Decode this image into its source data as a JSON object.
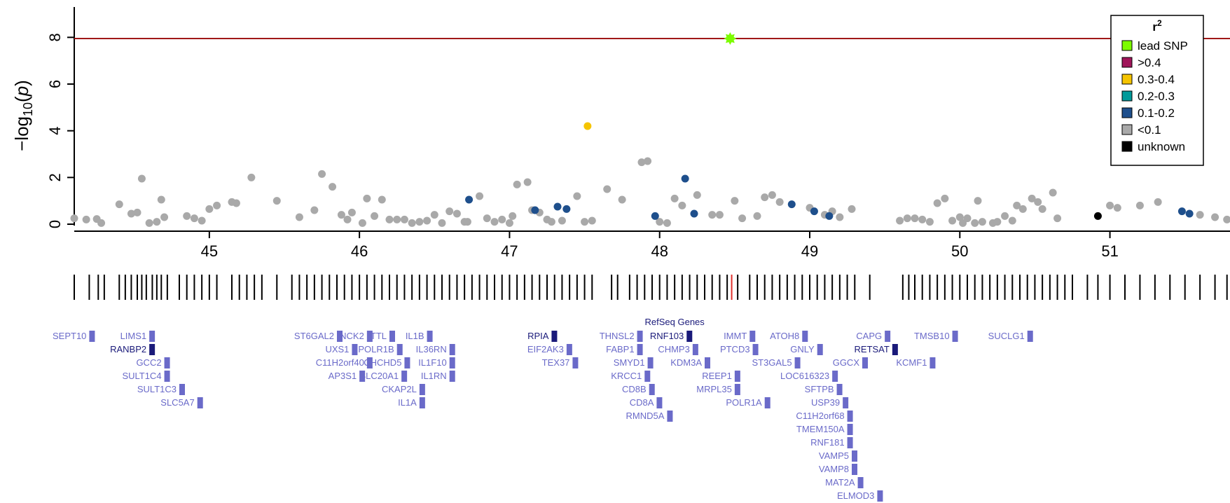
{
  "chart_data": {
    "type": "scatter",
    "ylabel": "−log10(p)",
    "xlim": [
      44.1,
      51.8
    ],
    "ylim": [
      -0.3,
      9.3
    ],
    "xticks": [
      45,
      46,
      47,
      48,
      49,
      50,
      51
    ],
    "yticks": [
      0,
      2,
      4,
      6,
      8
    ],
    "threshold": 7.95,
    "threshold_color": "#a01818",
    "grid": false,
    "legend": {
      "title": "r2",
      "placement": "top-right",
      "items": [
        {
          "label": "lead SNP",
          "color": "#7cfc00"
        },
        {
          "label": ">0.4",
          "color": "#a0155a"
        },
        {
          "label": "0.3-0.4",
          "color": "#f5c400"
        },
        {
          "label": "0.2-0.3",
          "color": "#009a9a"
        },
        {
          "label": "0.1-0.2",
          "color": "#1e4f8c"
        },
        {
          "label": "<0.1",
          "color": "#a9a9a9"
        },
        {
          "label": "unknown",
          "color": "#000000"
        }
      ]
    },
    "series": [
      {
        "color": "#a9a9a9",
        "points": [
          [
            44.1,
            0.25
          ],
          [
            44.18,
            0.2
          ],
          [
            44.25,
            0.22
          ],
          [
            44.28,
            0.05
          ],
          [
            44.4,
            0.85
          ],
          [
            44.48,
            0.45
          ],
          [
            44.52,
            0.5
          ],
          [
            44.55,
            1.95
          ],
          [
            44.6,
            0.05
          ],
          [
            44.65,
            0.1
          ],
          [
            44.68,
            1.05
          ],
          [
            44.7,
            0.3
          ],
          [
            44.85,
            0.35
          ],
          [
            44.9,
            0.25
          ],
          [
            44.95,
            0.15
          ],
          [
            45.0,
            0.65
          ],
          [
            45.05,
            0.8
          ],
          [
            45.15,
            0.95
          ],
          [
            45.18,
            0.9
          ],
          [
            45.28,
            2.0
          ],
          [
            45.45,
            1.0
          ],
          [
            45.6,
            0.3
          ],
          [
            45.7,
            0.6
          ],
          [
            45.75,
            2.15
          ],
          [
            45.82,
            1.6
          ],
          [
            45.88,
            0.4
          ],
          [
            45.92,
            0.2
          ],
          [
            45.95,
            0.5
          ],
          [
            46.02,
            0.05
          ],
          [
            46.05,
            1.1
          ],
          [
            46.1,
            0.35
          ],
          [
            46.15,
            1.05
          ],
          [
            46.2,
            0.2
          ],
          [
            46.25,
            0.2
          ],
          [
            46.3,
            0.2
          ],
          [
            46.35,
            0.05
          ],
          [
            46.4,
            0.1
          ],
          [
            46.45,
            0.15
          ],
          [
            46.5,
            0.4
          ],
          [
            46.55,
            0.05
          ],
          [
            46.6,
            0.55
          ],
          [
            46.65,
            0.45
          ],
          [
            46.7,
            0.1
          ],
          [
            46.72,
            0.1
          ],
          [
            46.8,
            1.2
          ],
          [
            46.85,
            0.25
          ],
          [
            46.9,
            0.1
          ],
          [
            46.95,
            0.2
          ],
          [
            47.0,
            0.05
          ],
          [
            47.02,
            0.35
          ],
          [
            47.05,
            1.7
          ],
          [
            47.12,
            1.8
          ],
          [
            47.15,
            0.6
          ],
          [
            47.2,
            0.5
          ],
          [
            47.25,
            0.2
          ],
          [
            47.28,
            0.1
          ],
          [
            47.35,
            0.15
          ],
          [
            47.45,
            1.2
          ],
          [
            47.5,
            0.1
          ],
          [
            47.55,
            0.15
          ],
          [
            47.65,
            1.5
          ],
          [
            47.75,
            1.05
          ],
          [
            47.88,
            2.65
          ],
          [
            47.92,
            2.7
          ],
          [
            48.0,
            0.1
          ],
          [
            48.05,
            0.05
          ],
          [
            48.1,
            1.1
          ],
          [
            48.15,
            0.8
          ],
          [
            48.25,
            1.25
          ],
          [
            48.35,
            0.4
          ],
          [
            48.4,
            0.4
          ],
          [
            48.5,
            1.0
          ],
          [
            48.55,
            0.25
          ],
          [
            48.65,
            0.35
          ],
          [
            48.7,
            1.15
          ],
          [
            48.75,
            1.25
          ],
          [
            48.8,
            0.95
          ],
          [
            49.0,
            0.7
          ],
          [
            49.1,
            0.4
          ],
          [
            49.15,
            0.55
          ],
          [
            49.2,
            0.3
          ],
          [
            49.28,
            0.65
          ],
          [
            49.6,
            0.15
          ],
          [
            49.65,
            0.25
          ],
          [
            49.7,
            0.25
          ],
          [
            49.75,
            0.2
          ],
          [
            49.8,
            0.1
          ],
          [
            49.85,
            0.9
          ],
          [
            49.9,
            1.1
          ],
          [
            49.95,
            0.15
          ],
          [
            50.0,
            0.3
          ],
          [
            50.02,
            0.05
          ],
          [
            50.05,
            0.25
          ],
          [
            50.1,
            0.05
          ],
          [
            50.12,
            1.0
          ],
          [
            50.15,
            0.1
          ],
          [
            50.22,
            0.05
          ],
          [
            50.25,
            0.1
          ],
          [
            50.3,
            0.35
          ],
          [
            50.35,
            0.15
          ],
          [
            50.38,
            0.8
          ],
          [
            50.42,
            0.65
          ],
          [
            50.48,
            1.1
          ],
          [
            50.52,
            0.95
          ],
          [
            50.55,
            0.65
          ],
          [
            50.62,
            1.35
          ],
          [
            50.65,
            0.25
          ],
          [
            51.0,
            0.8
          ],
          [
            51.05,
            0.7
          ],
          [
            51.2,
            0.8
          ],
          [
            51.32,
            0.95
          ],
          [
            51.6,
            0.4
          ],
          [
            51.7,
            0.3
          ],
          [
            51.78,
            0.2
          ]
        ]
      },
      {
        "color": "#1e4f8c",
        "points": [
          [
            46.73,
            1.05
          ],
          [
            47.17,
            0.6
          ],
          [
            47.32,
            0.75
          ],
          [
            47.38,
            0.65
          ],
          [
            47.97,
            0.35
          ],
          [
            48.17,
            1.95
          ],
          [
            48.23,
            0.45
          ],
          [
            48.88,
            0.85
          ],
          [
            49.03,
            0.55
          ],
          [
            49.13,
            0.35
          ],
          [
            51.48,
            0.55
          ],
          [
            51.53,
            0.45
          ]
        ]
      },
      {
        "color": "#f5c400",
        "points": [
          [
            47.52,
            4.2
          ]
        ]
      },
      {
        "color": "#000000",
        "points": [
          [
            50.92,
            0.35
          ]
        ]
      },
      {
        "color": "#7cfc00",
        "points": [
          [
            48.47,
            7.95
          ]
        ]
      }
    ],
    "snp_track": {
      "color": "#000000",
      "highlight_color": "#e0302a",
      "highlight": [
        48.48
      ],
      "positions": [
        44.1,
        44.2,
        44.26,
        44.3,
        44.4,
        44.44,
        44.48,
        44.52,
        44.55,
        44.58,
        44.62,
        44.65,
        44.68,
        44.72,
        44.8,
        44.85,
        44.9,
        44.95,
        45.0,
        45.05,
        45.15,
        45.2,
        45.25,
        45.3,
        45.35,
        45.45,
        45.55,
        45.6,
        45.65,
        45.7,
        45.75,
        45.8,
        45.85,
        45.9,
        45.95,
        46.0,
        46.05,
        46.1,
        46.15,
        46.2,
        46.25,
        46.3,
        46.35,
        46.4,
        46.45,
        46.5,
        46.55,
        46.6,
        46.65,
        46.7,
        46.75,
        46.8,
        46.85,
        46.9,
        46.95,
        47.0,
        47.05,
        47.1,
        47.15,
        47.2,
        47.25,
        47.3,
        47.35,
        47.4,
        47.45,
        47.5,
        47.55,
        47.68,
        47.72,
        47.8,
        47.85,
        47.9,
        47.95,
        48.0,
        48.05,
        48.1,
        48.15,
        48.2,
        48.25,
        48.3,
        48.35,
        48.4,
        48.45,
        48.48,
        48.52,
        48.6,
        48.65,
        48.7,
        48.75,
        48.8,
        48.85,
        48.9,
        48.95,
        49.0,
        49.05,
        49.1,
        49.15,
        49.2,
        49.25,
        49.3,
        49.4,
        49.62,
        49.66,
        49.7,
        49.75,
        49.8,
        49.85,
        49.9,
        49.95,
        50.0,
        50.05,
        50.1,
        50.15,
        50.2,
        50.25,
        50.3,
        50.35,
        50.4,
        50.45,
        50.5,
        50.55,
        50.6,
        50.65,
        50.7,
        50.75,
        50.85,
        50.92,
        51.0,
        51.1,
        51.2,
        51.3,
        51.4,
        51.5,
        51.6,
        51.7,
        51.78
      ]
    }
  },
  "gene_track": {
    "title": "RefSeq Genes",
    "genes": [
      {
        "name": "SEPT10",
        "x": 44.2,
        "row": 0
      },
      {
        "name": "LIMS1",
        "x": 44.6,
        "row": 0
      },
      {
        "name": "RANBP2",
        "x": 44.6,
        "row": 1,
        "dark": true
      },
      {
        "name": "GCC2",
        "x": 44.7,
        "row": 2
      },
      {
        "name": "SULT1C4",
        "x": 44.7,
        "row": 3
      },
      {
        "name": "SULT1C3",
        "x": 44.8,
        "row": 4
      },
      {
        "name": "SLC5A7",
        "x": 44.92,
        "row": 5
      },
      {
        "name": "ST6GAL2",
        "x": 45.85,
        "row": 0
      },
      {
        "name": "NCK2",
        "x": 46.05,
        "row": 0
      },
      {
        "name": "UXS1",
        "x": 45.95,
        "row": 1
      },
      {
        "name": "C11H2orf40",
        "x": 46.05,
        "row": 2
      },
      {
        "name": "AP3S1",
        "x": 46.0,
        "row": 3
      },
      {
        "name": "TTL",
        "x": 46.2,
        "row": 0
      },
      {
        "name": "POLR1B",
        "x": 46.25,
        "row": 1
      },
      {
        "name": "CHCHD5",
        "x": 46.3,
        "row": 2
      },
      {
        "name": "SLC20A1",
        "x": 46.28,
        "row": 3
      },
      {
        "name": "CKAP2L",
        "x": 46.4,
        "row": 4
      },
      {
        "name": "IL1A",
        "x": 46.4,
        "row": 5
      },
      {
        "name": "IL1B",
        "x": 46.45,
        "row": 0
      },
      {
        "name": "IL36RN",
        "x": 46.6,
        "row": 1
      },
      {
        "name": "IL1F10",
        "x": 46.6,
        "row": 2
      },
      {
        "name": "IL1RN",
        "x": 46.6,
        "row": 3
      },
      {
        "name": "RPIA",
        "x": 47.28,
        "row": 0,
        "dark": true
      },
      {
        "name": "EIF2AK3",
        "x": 47.38,
        "row": 1
      },
      {
        "name": "TEX37",
        "x": 47.42,
        "row": 2
      },
      {
        "name": "THNSL2",
        "x": 47.85,
        "row": 0
      },
      {
        "name": "FABP1",
        "x": 47.85,
        "row": 1
      },
      {
        "name": "SMYD1",
        "x": 47.92,
        "row": 2
      },
      {
        "name": "KRCC1",
        "x": 47.9,
        "row": 3
      },
      {
        "name": "CD8B",
        "x": 47.93,
        "row": 4
      },
      {
        "name": "CD8A",
        "x": 47.98,
        "row": 5
      },
      {
        "name": "RMND5A",
        "x": 48.05,
        "row": 6
      },
      {
        "name": "RNF103",
        "x": 48.18,
        "row": 0,
        "dark": true
      },
      {
        "name": "CHMP3",
        "x": 48.22,
        "row": 1
      },
      {
        "name": "KDM3A",
        "x": 48.3,
        "row": 2
      },
      {
        "name": "REEP1",
        "x": 48.5,
        "row": 3
      },
      {
        "name": "MRPL35",
        "x": 48.5,
        "row": 4
      },
      {
        "name": "POLR1A",
        "x": 48.7,
        "row": 5
      },
      {
        "name": "IMMT",
        "x": 48.6,
        "row": 0
      },
      {
        "name": "PTCD3",
        "x": 48.62,
        "row": 1
      },
      {
        "name": "ST3GAL5",
        "x": 48.9,
        "row": 2
      },
      {
        "name": "LOC616323",
        "x": 49.15,
        "row": 3
      },
      {
        "name": "ATOH8",
        "x": 48.95,
        "row": 0
      },
      {
        "name": "GNLY",
        "x": 49.05,
        "row": 1
      },
      {
        "name": "SFTPB",
        "x": 49.18,
        "row": 4
      },
      {
        "name": "USP39",
        "x": 49.22,
        "row": 5
      },
      {
        "name": "C11H2orf68",
        "x": 49.25,
        "row": 6
      },
      {
        "name": "TMEM150A",
        "x": 49.25,
        "row": 7
      },
      {
        "name": "RNF181",
        "x": 49.25,
        "row": 8
      },
      {
        "name": "VAMP5",
        "x": 49.28,
        "row": 9
      },
      {
        "name": "VAMP8",
        "x": 49.28,
        "row": 10
      },
      {
        "name": "MAT2A",
        "x": 49.32,
        "row": 11
      },
      {
        "name": "ELMOD3",
        "x": 49.45,
        "row": 12
      },
      {
        "name": "CAPG",
        "x": 49.5,
        "row": 0
      },
      {
        "name": "RETSAT",
        "x": 49.55,
        "row": 1,
        "dark": true
      },
      {
        "name": "GGCX",
        "x": 49.35,
        "row": 2
      },
      {
        "name": "TMSB10",
        "x": 49.95,
        "row": 0
      },
      {
        "name": "KCMF1",
        "x": 49.8,
        "row": 2
      },
      {
        "name": "SUCLG1",
        "x": 50.45,
        "row": 0
      }
    ]
  }
}
